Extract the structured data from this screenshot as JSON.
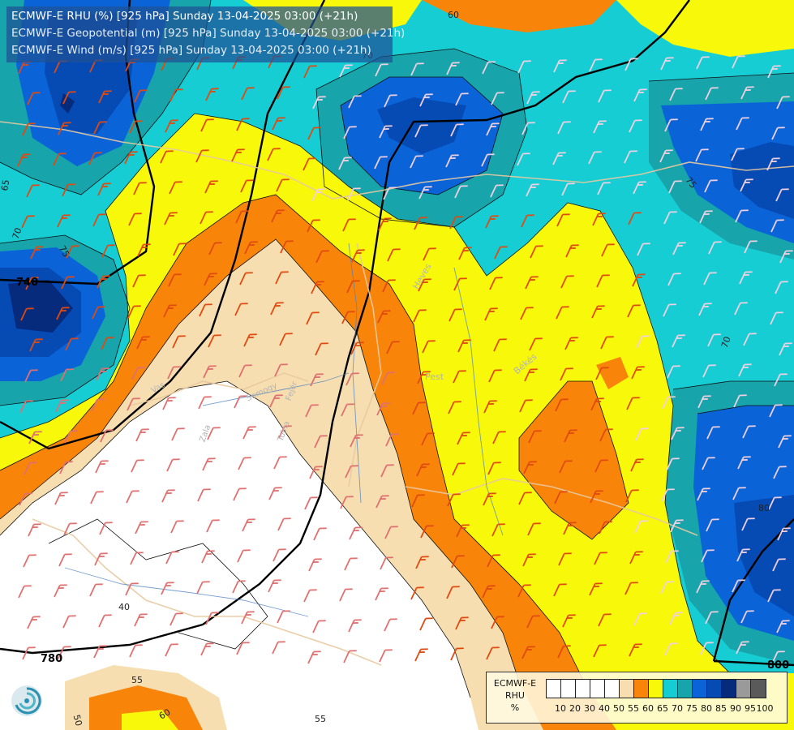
{
  "header": {
    "line1": "ECMWF-E RHU (%) [925 hPa] Sunday 13-04-2025 03:00 (+21h)",
    "line2": "ECMWF-E Geopotential (m) [925 hPa] Sunday 13-04-2025 03:00 (+21h)",
    "line3": "ECMWF-E Wind (m/s) [925 hPa] Sunday 13-04-2025 03:00 (+21h)"
  },
  "legend": {
    "model": "ECMWF-E",
    "variable": "RHU",
    "unit": "%",
    "levels": [
      "10",
      "20",
      "30",
      "40",
      "50",
      "55",
      "60",
      "65",
      "70",
      "75",
      "80",
      "85",
      "90",
      "95",
      "100"
    ],
    "colors": [
      "#ffffff",
      "#ffffff",
      "#ffffff",
      "#ffffff",
      "#ffffff",
      "#f7deb0",
      "#f8850a",
      "#f8f80a",
      "#17cdd4",
      "#17a4aa",
      "#0a64d8",
      "#064ab4",
      "#062a7c",
      "#9a9a9a",
      "#5a5a5a"
    ]
  },
  "geopotential_labels": [
    "740",
    "780",
    "800"
  ],
  "rhu_contour_labels": [
    "60",
    "65",
    "70",
    "75",
    "70",
    "75",
    "80",
    "40",
    "55",
    "50",
    "60",
    "55",
    "70"
  ],
  "place_labels": [
    "Heves",
    "Pest",
    "Békés",
    "Vas",
    "Zala",
    "Somogy",
    "Fejér",
    "Tolna"
  ],
  "colors": {
    "rhu_orange": "#f8850a",
    "rhu_yellow": "#f8f80a",
    "rhu_cyan": "#17cdd4",
    "rhu_teal": "#17a4aa",
    "rhu_blue": "#0a64d8",
    "rhu_darkblue": "#064ab4",
    "rhu_navy": "#062a7c",
    "rhu_tan": "#f7deb0",
    "title_bg": "#1e5096"
  },
  "icons": [
    "ecmwf-logo-icon",
    "wind-barb-icon"
  ]
}
